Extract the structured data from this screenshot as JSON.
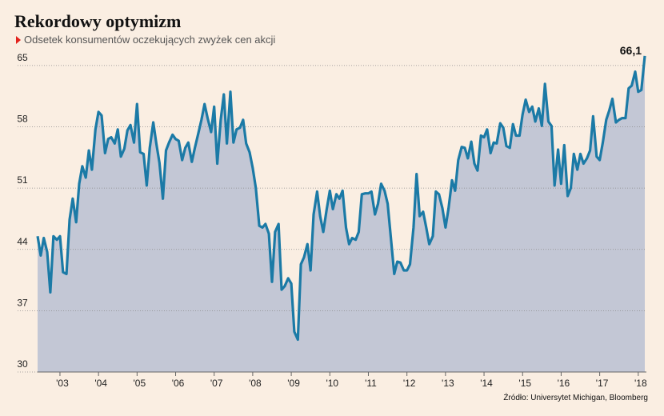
{
  "chart_data": {
    "type": "area",
    "title": "Rekordowy optymizm",
    "subtitle": "Odsetek konsumentów oczekujących zwyżek cen akcji",
    "source": "Źródło: Universytet Michigan, Bloomberg",
    "line_color": "#1b7aa6",
    "fill_color": "#c3c7d5",
    "grid": true,
    "x": [
      2002.42,
      2002.5,
      2002.58,
      2002.67,
      2002.75,
      2002.83,
      2002.92,
      2003.0,
      2003.08,
      2003.17,
      2003.25,
      2003.33,
      2003.42,
      2003.5,
      2003.58,
      2003.67,
      2003.75,
      2003.83,
      2003.92,
      2004.0,
      2004.08,
      2004.17,
      2004.25,
      2004.33,
      2004.42,
      2004.5,
      2004.58,
      2004.67,
      2004.75,
      2004.83,
      2004.92,
      2005.0,
      2005.08,
      2005.17,
      2005.25,
      2005.33,
      2005.42,
      2005.5,
      2005.58,
      2005.67,
      2005.75,
      2005.83,
      2005.92,
      2006.0,
      2006.08,
      2006.17,
      2006.25,
      2006.33,
      2006.42,
      2006.5,
      2006.58,
      2006.67,
      2006.75,
      2006.83,
      2006.92,
      2007.0,
      2007.08,
      2007.17,
      2007.25,
      2007.33,
      2007.42,
      2007.5,
      2007.58,
      2007.67,
      2007.75,
      2007.83,
      2007.92,
      2008.0,
      2008.08,
      2008.17,
      2008.25,
      2008.33,
      2008.42,
      2008.5,
      2008.58,
      2008.67,
      2008.75,
      2008.83,
      2008.92,
      2009.0,
      2009.08,
      2009.17,
      2009.25,
      2009.33,
      2009.42,
      2009.5,
      2009.58,
      2009.67,
      2009.75,
      2009.83,
      2009.92,
      2010.0,
      2010.08,
      2010.17,
      2010.25,
      2010.33,
      2010.42,
      2010.5,
      2010.58,
      2010.67,
      2010.75,
      2010.83,
      2010.92,
      2011.0,
      2011.08,
      2011.17,
      2011.25,
      2011.33,
      2011.42,
      2011.5,
      2011.58,
      2011.67,
      2011.75,
      2011.83,
      2011.92,
      2012.0,
      2012.08,
      2012.17,
      2012.25,
      2012.33,
      2012.42,
      2012.5,
      2012.58,
      2012.67,
      2012.75,
      2012.83,
      2012.92,
      2013.0,
      2013.08,
      2013.17,
      2013.25,
      2013.33,
      2013.42,
      2013.5,
      2013.58,
      2013.67,
      2013.75,
      2013.83,
      2013.92,
      2014.0,
      2014.08,
      2014.17,
      2014.25,
      2014.33,
      2014.42,
      2014.5,
      2014.58,
      2014.67,
      2014.75,
      2014.83,
      2014.92,
      2015.0,
      2015.08,
      2015.17,
      2015.25,
      2015.33,
      2015.42,
      2015.5,
      2015.58,
      2015.67,
      2015.75,
      2015.83,
      2015.92,
      2016.0,
      2016.08,
      2016.17,
      2016.25,
      2016.33,
      2016.42,
      2016.5,
      2016.58,
      2016.67,
      2016.75,
      2016.83,
      2016.92,
      2017.0,
      2017.08,
      2017.17,
      2017.25,
      2017.33,
      2017.42,
      2017.5,
      2017.58,
      2017.67,
      2017.75,
      2017.83,
      2017.92,
      2018.0,
      2018.08,
      2018.17
    ],
    "values": [
      45.5,
      43.3,
      45.3,
      43.7,
      39.1,
      45.5,
      45.1,
      45.5,
      41.4,
      41.2,
      47.4,
      49.8,
      47.1,
      51.5,
      53.5,
      52.2,
      55.3,
      53.1,
      57.7,
      59.7,
      59.3,
      55.0,
      56.6,
      56.8,
      56.1,
      57.7,
      54.6,
      55.5,
      57.6,
      58.2,
      56.2,
      60.6,
      55.1,
      54.9,
      51.3,
      55.6,
      58.5,
      56.1,
      53.9,
      49.8,
      55.3,
      56.2,
      57.1,
      56.6,
      56.4,
      54.2,
      55.6,
      56.2,
      54.0,
      55.6,
      57.1,
      58.8,
      60.6,
      59.0,
      57.4,
      60.3,
      53.8,
      58.8,
      61.7,
      56.1,
      62.0,
      56.2,
      57.7,
      57.9,
      58.8,
      56.1,
      55.1,
      53.3,
      51.0,
      46.7,
      46.5,
      46.9,
      45.8,
      40.3,
      46.0,
      46.9,
      39.4,
      39.8,
      40.7,
      40.1,
      34.6,
      33.7,
      42.3,
      43.1,
      44.6,
      41.6,
      48.0,
      50.6,
      47.8,
      46.0,
      48.6,
      50.7,
      48.6,
      50.3,
      49.8,
      50.7,
      46.5,
      44.6,
      45.3,
      45.1,
      46.0,
      50.3,
      50.4,
      50.4,
      50.6,
      48.0,
      49.2,
      51.5,
      50.7,
      49.2,
      45.5,
      41.2,
      42.6,
      42.5,
      41.6,
      41.6,
      42.3,
      46.5,
      52.6,
      47.8,
      48.3,
      46.5,
      44.6,
      45.5,
      50.6,
      50.3,
      48.7,
      46.5,
      48.7,
      51.9,
      50.7,
      54.2,
      55.7,
      55.6,
      54.4,
      56.3,
      53.8,
      53.0,
      57.0,
      56.8,
      57.7,
      55.0,
      56.2,
      56.1,
      58.4,
      57.9,
      55.8,
      55.6,
      58.3,
      57.0,
      57.0,
      59.4,
      61.1,
      59.7,
      60.3,
      58.6,
      60.1,
      58.1,
      62.9,
      58.6,
      58.1,
      51.3,
      55.4,
      51.5,
      55.9,
      50.1,
      51.0,
      54.9,
      53.1,
      54.9,
      53.8,
      54.4,
      55.3,
      59.2,
      54.6,
      54.2,
      56.2,
      58.8,
      59.9,
      61.2,
      58.5,
      58.8,
      59.0,
      59.0,
      62.4,
      62.7,
      64.3,
      62.0,
      62.2,
      66.1
    ],
    "annotations": [
      {
        "text": "66,1",
        "x": 2018.17,
        "y": 66.1
      }
    ],
    "xlim": [
      2002.42,
      2018.17
    ],
    "xticks": [
      {
        "value": 2003,
        "label": "'03"
      },
      {
        "value": 2004,
        "label": "'04"
      },
      {
        "value": 2005,
        "label": "'05"
      },
      {
        "value": 2006,
        "label": "'06"
      },
      {
        "value": 2007,
        "label": "'07"
      },
      {
        "value": 2008,
        "label": "'08"
      },
      {
        "value": 2009,
        "label": "'09"
      },
      {
        "value": 2010,
        "label": "'10"
      },
      {
        "value": 2011,
        "label": "'11"
      },
      {
        "value": 2012,
        "label": "'12"
      },
      {
        "value": 2013,
        "label": "'13"
      },
      {
        "value": 2014,
        "label": "'14"
      },
      {
        "value": 2015,
        "label": "'15"
      },
      {
        "value": 2016,
        "label": "'16"
      },
      {
        "value": 2017,
        "label": "'17"
      },
      {
        "value": 2018,
        "label": "'18"
      }
    ],
    "ylim": [
      30,
      67
    ],
    "yticks": [
      30,
      37,
      44,
      51,
      58,
      65
    ]
  }
}
